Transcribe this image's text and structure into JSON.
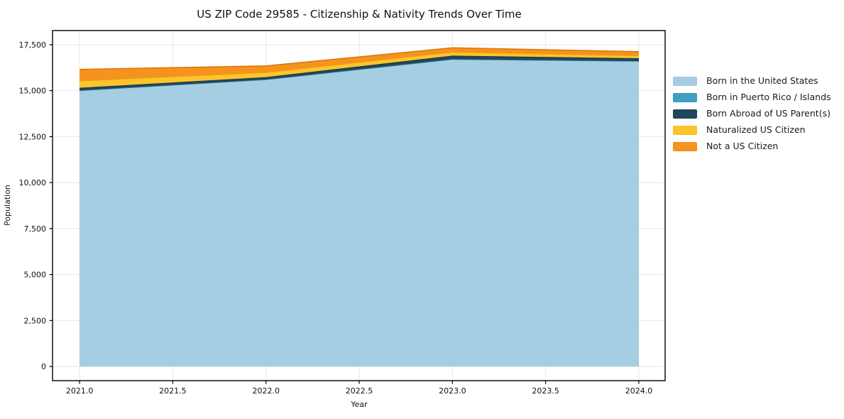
{
  "chart_data": {
    "type": "area",
    "stacked": true,
    "title": "US ZIP Code 29585 - Citizenship & Nativity Trends Over Time",
    "xlabel": "Year",
    "ylabel": "Population",
    "x": [
      2021,
      2022,
      2023,
      2024
    ],
    "series": [
      {
        "name": "Born in the United States",
        "color": "#a6cee3",
        "edge_color": "#86b9d6",
        "values": [
          15000,
          15600,
          16700,
          16600
        ]
      },
      {
        "name": "Born in Puerto Rico / Islands",
        "color": "#3d9fc2",
        "edge_color": "#2e86a6",
        "values": [
          15,
          10,
          15,
          10
        ]
      },
      {
        "name": "Born Abroad of US Parent(s)",
        "color": "#21465a",
        "edge_color": "#16313f",
        "values": [
          140,
          125,
          190,
          155
        ]
      },
      {
        "name": "Naturalized US Citizen",
        "color": "#fdc42d",
        "edge_color": "#e5a80f",
        "values": [
          380,
          260,
          195,
          140
        ]
      },
      {
        "name": "Not a US Citizen",
        "color": "#f6921e",
        "edge_color": "#dd790b",
        "values": [
          620,
          350,
          230,
          215
        ]
      }
    ],
    "xlim": [
      2020.855,
      2024.141
    ],
    "ylim": [
      -770,
      18270
    ],
    "xticks": [
      2021.0,
      2021.5,
      2022.0,
      2022.5,
      2023.0,
      2023.5,
      2024.0
    ],
    "xtick_labels": [
      "2021.0",
      "2021.5",
      "2022.0",
      "2022.5",
      "2023.0",
      "2023.5",
      "2024.0"
    ],
    "yticks": [
      0,
      2500,
      5000,
      7500,
      10000,
      12500,
      15000,
      17500
    ],
    "ytick_labels": [
      "0",
      "2,500",
      "5,000",
      "7,500",
      "10,000",
      "12,500",
      "15,000",
      "17,500"
    ],
    "grid": true,
    "grid_color": "#e7e7e7",
    "spine_color": "#000000",
    "text_color": "#111111",
    "legend_position": "right"
  }
}
